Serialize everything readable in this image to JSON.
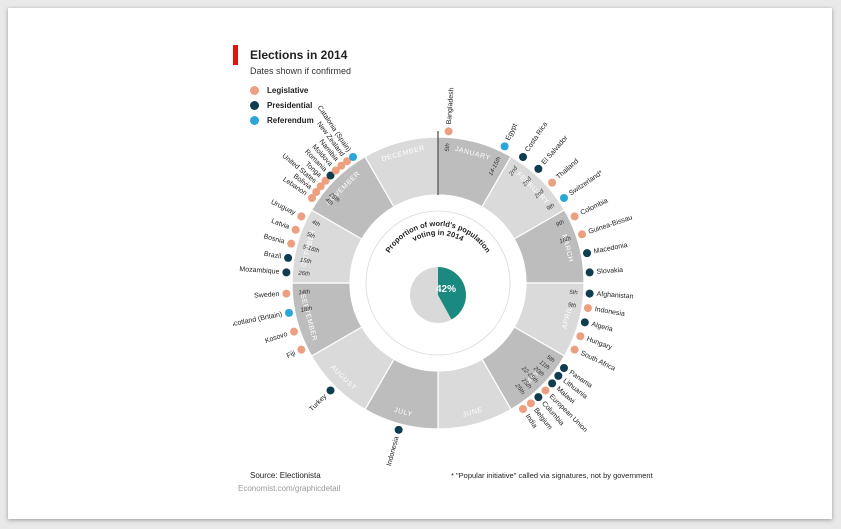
{
  "header": {
    "title": "Elections in 2014",
    "subtitle": "Dates shown if confirmed"
  },
  "legend": [
    {
      "label": "Legislative",
      "color": "#eda07f"
    },
    {
      "label": "Presidential",
      "color": "#0f3d50"
    },
    {
      "label": "Referendum",
      "color": "#2aa7d8"
    }
  ],
  "center": {
    "label_line1": "Proportion of world's population",
    "label_line2": "voting in 2014",
    "value_label": "42%",
    "value_percent": 42
  },
  "colors": {
    "ring_light": "#dadada",
    "ring_dark": "#bdbdbd",
    "pie_fill": "#1a8a80",
    "pie_rest": "#d9d9d9"
  },
  "footer": {
    "source": "Source: Electionista",
    "footnote": "* \"Popular initiative\" called via signatures, not by government",
    "url": "Economist.com/graphicdetail"
  },
  "chart_data": {
    "type": "radial-timeline",
    "months": [
      "JANUARY",
      "FEBRUARY",
      "MARCH",
      "APRIL",
      "MAY",
      "JUNE",
      "JULY",
      "AUGUST",
      "SEPTEMBER",
      "OCTOBER",
      "NOVEMBER",
      "DECEMBER"
    ],
    "elections": [
      {
        "country": "Bangladesh",
        "type": "Legislative",
        "month": 1,
        "date": "5th"
      },
      {
        "country": "Egypt",
        "type": "Referendum",
        "month": 1,
        "date": "14-15th"
      },
      {
        "country": "Costa Rica",
        "type": "Presidential",
        "month": 2,
        "date": "2nd"
      },
      {
        "country": "El Salvador",
        "type": "Presidential",
        "month": 2,
        "date": "2nd"
      },
      {
        "country": "Thailand",
        "type": "Legislative",
        "month": 2,
        "date": "2nd"
      },
      {
        "country": "Switzerland*",
        "type": "Referendum",
        "month": 2,
        "date": "9th"
      },
      {
        "country": "Colombia",
        "type": "Legislative",
        "month": 3,
        "date": "9th"
      },
      {
        "country": "Guinea-Bissau",
        "type": "Legislative",
        "month": 3,
        "date": "16th"
      },
      {
        "country": "Macedonia",
        "type": "Presidential",
        "month": 3,
        "date": ""
      },
      {
        "country": "Slovakia",
        "type": "Presidential",
        "month": 3,
        "date": ""
      },
      {
        "country": "Afghanistan",
        "type": "Presidential",
        "month": 4,
        "date": "5th"
      },
      {
        "country": "Indonesia",
        "type": "Legislative",
        "month": 4,
        "date": "9th"
      },
      {
        "country": "Algeria",
        "type": "Presidential",
        "month": 4,
        "date": ""
      },
      {
        "country": "Hungary",
        "type": "Legislative",
        "month": 4,
        "date": ""
      },
      {
        "country": "South Africa",
        "type": "Legislative",
        "month": 4,
        "date": ""
      },
      {
        "country": "Panama",
        "type": "Presidential",
        "month": 5,
        "date": "5th"
      },
      {
        "country": "Lithuania",
        "type": "Presidential",
        "month": 5,
        "date": "11th"
      },
      {
        "country": "Malawi",
        "type": "Presidential",
        "month": 5,
        "date": "20th"
      },
      {
        "country": "European Union",
        "type": "Legislative",
        "month": 5,
        "date": "22-25th"
      },
      {
        "country": "Columbia",
        "type": "Presidential",
        "month": 5,
        "date": "25th"
      },
      {
        "country": "Belgium",
        "type": "Legislative",
        "month": 5,
        "date": "25th"
      },
      {
        "country": "India",
        "type": "Legislative",
        "month": 5,
        "date": ""
      },
      {
        "country": "Indonesia",
        "type": "Presidential",
        "month": 7,
        "date": ""
      },
      {
        "country": "Turkey",
        "type": "Presidential",
        "month": 8,
        "date": ""
      },
      {
        "country": "Fiji",
        "type": "Legislative",
        "month": 9,
        "date": ""
      },
      {
        "country": "Kosovo",
        "type": "Legislative",
        "month": 9,
        "date": ""
      },
      {
        "country": "Scotland (Britain)",
        "type": "Referendum",
        "month": 9,
        "date": "18th"
      },
      {
        "country": "Sweden",
        "type": "Legislative",
        "month": 9,
        "date": "14th"
      },
      {
        "country": "Mozambique",
        "type": "Presidential",
        "month": 10,
        "date": "26th"
      },
      {
        "country": "Brazil",
        "type": "Presidential",
        "month": 10,
        "date": "15th"
      },
      {
        "country": "Bosnia",
        "type": "Legislative",
        "month": 10,
        "date": "5-16th"
      },
      {
        "country": "Latvia",
        "type": "Legislative",
        "month": 10,
        "date": "5th"
      },
      {
        "country": "Uruguay",
        "type": "Legislative",
        "month": 10,
        "date": "4th"
      },
      {
        "country": "Lebanon",
        "type": "Legislative",
        "month": 11,
        "date": ""
      },
      {
        "country": "Bolivia",
        "type": "Legislative",
        "month": 11,
        "date": "4th"
      },
      {
        "country": "United States",
        "type": "Legislative",
        "month": 11,
        "date": "25th"
      },
      {
        "country": "Tonga",
        "type": "Legislative",
        "month": 11,
        "date": ""
      },
      {
        "country": "Romania",
        "type": "Presidential",
        "month": 11,
        "date": ""
      },
      {
        "country": "Moldova",
        "type": "Legislative",
        "month": 11,
        "date": ""
      },
      {
        "country": "Namibia",
        "type": "Legislative",
        "month": 11,
        "date": ""
      },
      {
        "country": "New Zealand",
        "type": "Legislative",
        "month": 11,
        "date": ""
      },
      {
        "country": "Catalonia (Spain)",
        "type": "Referendum",
        "month": 11,
        "date": ""
      }
    ]
  }
}
